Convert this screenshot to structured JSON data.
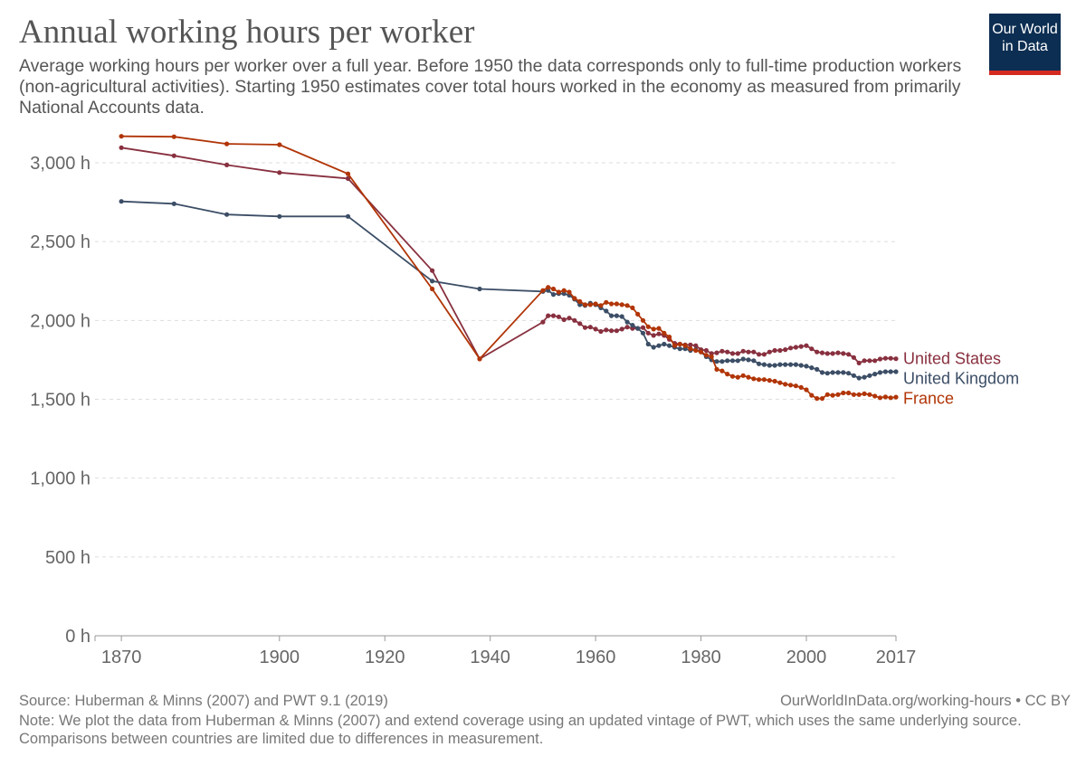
{
  "header": {
    "title": "Annual working hours per worker",
    "subtitle": "Average working hours per worker over a full year. Before 1950 the data corresponds only to full-time production workers (non-agricultural activities). Starting 1950 estimates cover total hours worked in the economy as measured from primarily National Accounts data.",
    "logo_line1": "Our World",
    "logo_line2": "in Data"
  },
  "footer": {
    "source": "Source: Huberman & Minns (2007) and PWT 9.1 (2019)",
    "license": "OurWorldInData.org/working-hours • CC BY",
    "note": "Note: We plot the data from Huberman & Minns (2007) and extend coverage using an updated vintage of PWT, which uses the same underlying source. Comparisons between countries are limited due to differences in measurement."
  },
  "colors": {
    "us": "#88303f",
    "uk": "#3c4e66",
    "fr": "#b13507",
    "grid": "#dddddd",
    "tick": "#666666",
    "text": "#555555"
  },
  "chart_data": {
    "type": "line",
    "ylim": [
      0,
      3200
    ],
    "xlim": [
      1865,
      2017
    ],
    "y_ticks": [
      0,
      500,
      1000,
      1500,
      2000,
      2500,
      3000
    ],
    "y_tick_labels": [
      "0 h",
      "500 h",
      "1,000 h",
      "1,500 h",
      "2,000 h",
      "2,500 h",
      "3,000 h"
    ],
    "x_ticks": [
      1870,
      1900,
      1920,
      1940,
      1960,
      1980,
      2000,
      2017
    ],
    "x_tick_labels": [
      "1870",
      "1900",
      "1920",
      "1940",
      "1960",
      "1980",
      "2000",
      "2017"
    ],
    "grid": "horizontal dashed",
    "legend": "labels at line ends (right)",
    "series": [
      {
        "name": "United States",
        "color": "#88303f",
        "x": [
          1870,
          1880,
          1890,
          1900,
          1913,
          1929,
          1938,
          1950,
          1951,
          1952,
          1953,
          1954,
          1955,
          1956,
          1957,
          1958,
          1959,
          1960,
          1961,
          1962,
          1963,
          1964,
          1965,
          1966,
          1967,
          1968,
          1969,
          1970,
          1971,
          1972,
          1973,
          1974,
          1975,
          1976,
          1977,
          1978,
          1979,
          1980,
          1981,
          1982,
          1983,
          1984,
          1985,
          1986,
          1987,
          1988,
          1989,
          1990,
          1991,
          1992,
          1993,
          1994,
          1995,
          1996,
          1997,
          1998,
          1999,
          2000,
          2001,
          2002,
          2003,
          2004,
          2005,
          2006,
          2007,
          2008,
          2009,
          2010,
          2011,
          2012,
          2013,
          2014,
          2015,
          2016,
          2017
        ],
        "y": [
          3096,
          3045,
          2986,
          2938,
          2900,
          2316,
          1756,
          1990,
          2030,
          2030,
          2023,
          2005,
          2015,
          2000,
          1980,
          1955,
          1958,
          1945,
          1930,
          1940,
          1935,
          1935,
          1945,
          1958,
          1950,
          1950,
          1955,
          1920,
          1905,
          1915,
          1905,
          1880,
          1855,
          1850,
          1845,
          1845,
          1840,
          1815,
          1810,
          1790,
          1795,
          1805,
          1800,
          1790,
          1790,
          1805,
          1800,
          1800,
          1785,
          1785,
          1800,
          1810,
          1810,
          1815,
          1825,
          1830,
          1835,
          1840,
          1820,
          1800,
          1795,
          1790,
          1790,
          1795,
          1790,
          1785,
          1765,
          1730,
          1745,
          1745,
          1745,
          1755,
          1760,
          1760,
          1757
        ]
      },
      {
        "name": "United Kingdom",
        "color": "#3c4e66",
        "x": [
          1870,
          1880,
          1890,
          1900,
          1913,
          1929,
          1938,
          1950,
          1951,
          1952,
          1953,
          1954,
          1955,
          1956,
          1957,
          1958,
          1959,
          1960,
          1961,
          1962,
          1963,
          1964,
          1965,
          1966,
          1967,
          1968,
          1969,
          1970,
          1971,
          1972,
          1973,
          1974,
          1975,
          1976,
          1977,
          1978,
          1979,
          1980,
          1981,
          1982,
          1983,
          1984,
          1985,
          1986,
          1987,
          1988,
          1989,
          1990,
          1991,
          1992,
          1993,
          1994,
          1995,
          1996,
          1997,
          1998,
          1999,
          2000,
          2001,
          2002,
          2003,
          2004,
          2005,
          2006,
          2007,
          2008,
          2009,
          2010,
          2011,
          2012,
          2013,
          2014,
          2015,
          2016,
          2017
        ],
        "y": [
          2755,
          2740,
          2672,
          2660,
          2660,
          2250,
          2200,
          2184,
          2190,
          2165,
          2170,
          2170,
          2160,
          2135,
          2100,
          2095,
          2110,
          2100,
          2080,
          2060,
          2030,
          2030,
          2025,
          1990,
          1970,
          1950,
          1920,
          1850,
          1830,
          1840,
          1850,
          1840,
          1830,
          1820,
          1820,
          1810,
          1815,
          1800,
          1770,
          1750,
          1740,
          1740,
          1745,
          1745,
          1745,
          1755,
          1750,
          1745,
          1725,
          1720,
          1715,
          1715,
          1720,
          1720,
          1720,
          1720,
          1715,
          1710,
          1700,
          1690,
          1670,
          1665,
          1670,
          1670,
          1670,
          1665,
          1650,
          1635,
          1640,
          1650,
          1660,
          1670,
          1675,
          1675,
          1675
        ]
      },
      {
        "name": "France",
        "color": "#b13507",
        "x": [
          1870,
          1880,
          1890,
          1900,
          1913,
          1929,
          1938,
          1950,
          1951,
          1952,
          1953,
          1954,
          1955,
          1956,
          1957,
          1958,
          1959,
          1960,
          1961,
          1962,
          1963,
          1964,
          1965,
          1966,
          1967,
          1968,
          1969,
          1970,
          1971,
          1972,
          1973,
          1974,
          1975,
          1976,
          1977,
          1978,
          1979,
          1980,
          1981,
          1982,
          1983,
          1984,
          1985,
          1986,
          1987,
          1988,
          1989,
          1990,
          1991,
          1992,
          1993,
          1994,
          1995,
          1996,
          1997,
          1998,
          1999,
          2000,
          2001,
          2002,
          2003,
          2004,
          2005,
          2006,
          2007,
          2008,
          2009,
          2010,
          2011,
          2012,
          2013,
          2014,
          2015,
          2016,
          2017
        ],
        "y": [
          3168,
          3165,
          3120,
          3115,
          2930,
          2200,
          1756,
          2190,
          2210,
          2200,
          2180,
          2190,
          2180,
          2140,
          2120,
          2100,
          2100,
          2105,
          2095,
          2115,
          2105,
          2105,
          2100,
          2095,
          2080,
          2040,
          2000,
          1960,
          1945,
          1950,
          1920,
          1895,
          1840,
          1850,
          1840,
          1820,
          1810,
          1800,
          1780,
          1770,
          1690,
          1680,
          1660,
          1645,
          1640,
          1650,
          1640,
          1630,
          1625,
          1625,
          1620,
          1615,
          1605,
          1595,
          1590,
          1585,
          1575,
          1560,
          1525,
          1505,
          1505,
          1530,
          1525,
          1530,
          1540,
          1540,
          1530,
          1530,
          1535,
          1530,
          1520,
          1510,
          1515,
          1510,
          1514
        ]
      }
    ]
  }
}
